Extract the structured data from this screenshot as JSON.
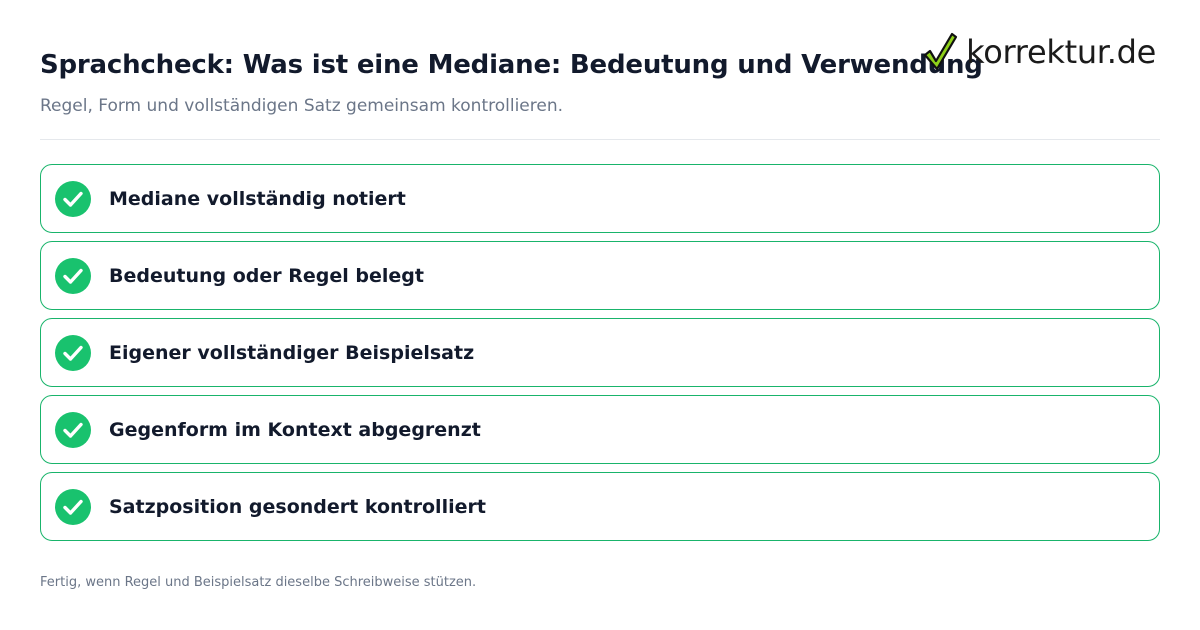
{
  "header": {
    "title": "Sprachcheck: Was ist eine Mediane: Bedeutung und Verwendung",
    "subtitle": "Regel, Form und vollständigen Satz gemeinsam kontrollieren."
  },
  "logo": {
    "text": "korrektur.de",
    "icon": "checkmark-icon",
    "colors": {
      "check_fill": "#8fd11a",
      "check_stroke": "#111111"
    }
  },
  "checklist": {
    "items": [
      {
        "label": "Mediane vollständig notiert",
        "checked": true
      },
      {
        "label": "Bedeutung oder Regel belegt",
        "checked": true
      },
      {
        "label": "Eigener vollständiger Beispielsatz",
        "checked": true
      },
      {
        "label": "Gegenform im Kontext abgegrenzt",
        "checked": true
      },
      {
        "label": "Satzposition gesondert kontrolliert",
        "checked": true
      }
    ],
    "colors": {
      "accent": "#19c26e",
      "border": "#19b46b"
    }
  },
  "footer": {
    "note": "Fertig, wenn Regel und Beispielsatz dieselbe Schreibweise stützen."
  }
}
